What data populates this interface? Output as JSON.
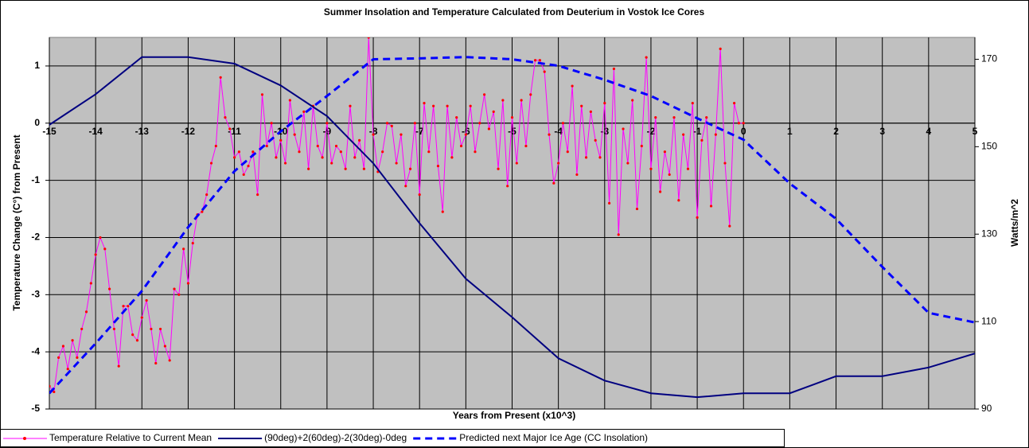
{
  "chart_data": {
    "type": "line",
    "title": "Summer Insolation and Temperature Calculated from Deuterium in Vostok Ice Cores",
    "x_label": "Years from Present (x10^3)",
    "y_label": "Temperature Change (C°) from Present",
    "y2_label": "Watts/m^2",
    "xlim": [
      -15,
      5
    ],
    "xticks": [
      -15,
      -14,
      -13,
      -12,
      -11,
      -10,
      -9,
      -8,
      -7,
      -6,
      -5,
      -4,
      -3,
      -2,
      -1,
      0,
      1,
      2,
      3,
      4,
      5
    ],
    "ylim": [
      -5,
      1.5
    ],
    "yticks": [
      -5,
      -4,
      -3,
      -2,
      -1,
      0,
      1
    ],
    "y2lim": [
      90,
      175
    ],
    "y2ticks": [
      90,
      110,
      130,
      150,
      170
    ],
    "grid": true,
    "plot_background": "#c0c0c0",
    "legend": "bottom",
    "series": [
      {
        "name": "Temperature Relative to Current Mean",
        "color": "#ff00ff",
        "marker_color": "#ff0000",
        "style": "solid-markers",
        "x": [
          -15.0,
          -14.9,
          -14.8,
          -14.7,
          -14.6,
          -14.5,
          -14.4,
          -14.3,
          -14.2,
          -14.1,
          -14.0,
          -13.9,
          -13.8,
          -13.7,
          -13.6,
          -13.5,
          -13.4,
          -13.3,
          -13.2,
          -13.1,
          -13.0,
          -12.9,
          -12.8,
          -12.7,
          -12.6,
          -12.5,
          -12.4,
          -12.3,
          -12.2,
          -12.1,
          -12.0,
          -11.9,
          -11.8,
          -11.7,
          -11.6,
          -11.5,
          -11.4,
          -11.3,
          -11.2,
          -11.1,
          -11.0,
          -10.9,
          -10.8,
          -10.7,
          -10.6,
          -10.5,
          -10.4,
          -10.3,
          -10.2,
          -10.1,
          -10.0,
          -9.9,
          -9.8,
          -9.7,
          -9.6,
          -9.5,
          -9.4,
          -9.3,
          -9.2,
          -9.1,
          -9.0,
          -8.9,
          -8.8,
          -8.7,
          -8.6,
          -8.5,
          -8.4,
          -8.3,
          -8.2,
          -8.1,
          -8.0,
          -7.9,
          -7.8,
          -7.7,
          -7.6,
          -7.5,
          -7.4,
          -7.3,
          -7.2,
          -7.1,
          -7.0,
          -6.9,
          -6.8,
          -6.7,
          -6.6,
          -6.5,
          -6.4,
          -6.3,
          -6.2,
          -6.1,
          -6.0,
          -5.9,
          -5.8,
          -5.7,
          -5.6,
          -5.5,
          -5.4,
          -5.3,
          -5.2,
          -5.1,
          -5.0,
          -4.9,
          -4.8,
          -4.7,
          -4.6,
          -4.5,
          -4.4,
          -4.3,
          -4.2,
          -4.1,
          -4.0,
          -3.9,
          -3.8,
          -3.7,
          -3.6,
          -3.5,
          -3.4,
          -3.3,
          -3.2,
          -3.1,
          -3.0,
          -2.9,
          -2.8,
          -2.7,
          -2.6,
          -2.5,
          -2.4,
          -2.3,
          -2.2,
          -2.1,
          -2.0,
          -1.9,
          -1.8,
          -1.7,
          -1.6,
          -1.5,
          -1.4,
          -1.3,
          -1.2,
          -1.1,
          -1.0,
          -0.9,
          -0.8,
          -0.7,
          -0.6,
          -0.5,
          -0.4,
          -0.3,
          -0.2,
          -0.1,
          0.0
        ],
        "values": [
          -4.6,
          -4.7,
          -4.1,
          -3.9,
          -4.3,
          -3.8,
          -4.1,
          -3.6,
          -3.3,
          -2.8,
          -2.3,
          -2.0,
          -2.2,
          -2.9,
          -3.6,
          -4.25,
          -3.2,
          -3.2,
          -3.7,
          -3.8,
          -3.4,
          -3.1,
          -3.6,
          -4.2,
          -3.6,
          -3.9,
          -4.15,
          -2.9,
          -3.0,
          -2.2,
          -2.8,
          -2.1,
          -1.6,
          -1.55,
          -1.25,
          -0.7,
          -0.4,
          0.8,
          0.1,
          -0.1,
          -0.6,
          -0.5,
          -0.9,
          -0.75,
          -0.5,
          -1.25,
          0.5,
          -0.4,
          0.0,
          -0.6,
          -0.3,
          -0.7,
          0.4,
          -0.2,
          -0.5,
          0.2,
          -0.8,
          0.3,
          -0.4,
          -0.6,
          0.0,
          -0.7,
          -0.4,
          -0.5,
          -0.8,
          0.3,
          -0.6,
          -0.3,
          -0.8,
          1.5,
          -0.2,
          -0.85,
          -0.5,
          0.0,
          -0.05,
          -0.7,
          -0.2,
          -1.1,
          -0.8,
          0.0,
          -1.25,
          0.35,
          -0.5,
          0.3,
          -0.75,
          -1.55,
          0.3,
          -0.6,
          0.1,
          -0.4,
          -0.2,
          0.3,
          -0.5,
          0.0,
          0.5,
          -0.1,
          0.2,
          -0.8,
          0.4,
          -1.1,
          0.1,
          -0.7,
          0.4,
          -0.4,
          0.5,
          1.1,
          1.1,
          0.9,
          -0.2,
          -1.05,
          -0.7,
          0.0,
          -0.5,
          0.65,
          -0.9,
          0.3,
          -0.6,
          0.2,
          -0.3,
          -0.6,
          0.35,
          -1.4,
          0.95,
          -1.95,
          -0.1,
          -0.7,
          0.4,
          -1.5,
          -0.4,
          1.15,
          -0.8,
          0.1,
          -1.2,
          -0.5,
          -0.9,
          0.1,
          -1.35,
          -0.2,
          -0.8,
          0.35,
          -1.65,
          -0.3,
          0.1,
          -1.45,
          -0.2,
          1.3,
          -0.7,
          -1.8,
          0.35,
          0.0,
          0.0
        ]
      },
      {
        "name": "(90deg)+2(60deg)-2(30deg)-0deg",
        "color": "#000080",
        "axis": "y2",
        "style": "solid",
        "x": [
          -15,
          -14,
          -13,
          -12,
          -11,
          -10,
          -9,
          -8,
          -7,
          -6,
          -5,
          -4,
          -3,
          -2,
          -1,
          0,
          1,
          2,
          3,
          4,
          5
        ],
        "values": [
          155,
          162,
          170.5,
          170.5,
          169,
          164,
          157,
          146.2,
          132.5,
          119.8,
          111,
          101.6,
          96.5,
          93.6,
          92.7,
          93.6,
          93.6,
          97.5,
          97.5,
          99.5,
          102.7
        ]
      },
      {
        "name": "Predicted next Major Ice Age (CC Insolation)",
        "color": "#0000ff",
        "axis": "y2",
        "style": "dashed",
        "x": [
          -15,
          -14,
          -13,
          -12,
          -11,
          -10,
          -9,
          -8,
          -7,
          -6,
          -5,
          -4,
          -3,
          -2,
          -1,
          0,
          1,
          2,
          3,
          4,
          5
        ],
        "values": [
          93.6,
          105,
          117,
          131.6,
          144.4,
          153.5,
          161.6,
          170,
          170.2,
          170.5,
          170,
          168.5,
          165.3,
          161.6,
          156.5,
          151.6,
          141.6,
          133.5,
          122.5,
          112,
          109.8
        ]
      }
    ]
  }
}
